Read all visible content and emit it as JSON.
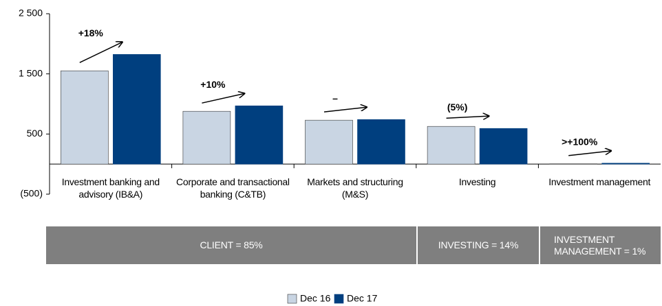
{
  "chart_data": {
    "type": "bar",
    "categories": [
      "Investment banking and advisory (IB&A)",
      "Corporate and transactional banking (C&TB)",
      "Markets and structuring (M&S)",
      "Investing",
      "Investment management"
    ],
    "series": [
      {
        "name": "Dec 16",
        "color": "#c9d5e3",
        "values": [
          1551,
          878,
          730,
          627,
          5
        ]
      },
      {
        "name": "Dec 17",
        "color": "#003f7f",
        "values": [
          1824,
          969,
          741,
          593,
          15
        ]
      }
    ],
    "annotations": [
      "+18%",
      "+10%",
      "–",
      "(5%)",
      ">+100%"
    ],
    "segments": [
      "CLIENT = 85%",
      "INVESTING = 14%",
      "INVESTMENT MANAGEMENT = 1%"
    ],
    "ylim": [
      -500,
      2500
    ],
    "yticks": [
      {
        "value": -500,
        "label": "(500)"
      },
      500,
      {
        "value": 1500,
        "label": "1 500"
      },
      {
        "value": 2500,
        "label": "2 500"
      }
    ]
  }
}
